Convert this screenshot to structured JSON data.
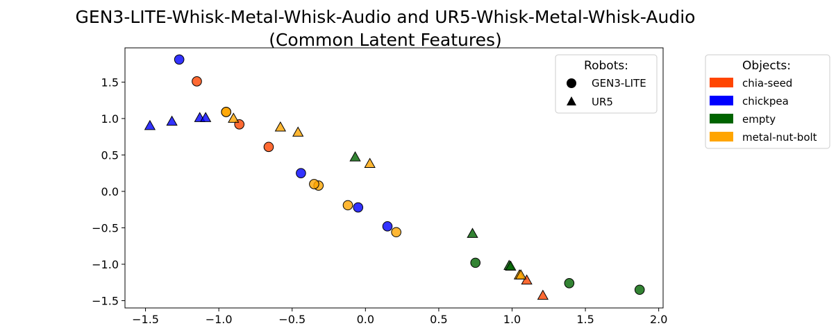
{
  "chart_data": {
    "type": "scatter",
    "title": "GEN3-LITE-Whisk-Metal-Whisk-Audio and UR5-Whisk-Metal-Whisk-Audio\n(Common Latent Features)",
    "xlabel": "",
    "ylabel": "",
    "xlim": [
      -1.64,
      2.03
    ],
    "ylim": [
      -1.6,
      1.97
    ],
    "xticks": [
      -1.5,
      -1.0,
      -0.5,
      0.0,
      0.5,
      1.0,
      1.5,
      2.0
    ],
    "yticks": [
      -1.5,
      -1.0,
      -0.5,
      0.0,
      0.5,
      1.0,
      1.5
    ],
    "grid": false,
    "legends": {
      "robots": {
        "title": "Robots:",
        "placement": "top-right inside",
        "items": [
          {
            "label": "GEN3-LITE",
            "marker": "circle"
          },
          {
            "label": "UR5",
            "marker": "triangle"
          }
        ]
      },
      "objects": {
        "title": "Objects:",
        "placement": "outside right",
        "items": [
          {
            "label": "chia-seed",
            "color": "#ff4500"
          },
          {
            "label": "chickpea",
            "color": "#0000ff"
          },
          {
            "label": "empty",
            "color": "#006400"
          },
          {
            "label": "metal-nut-bolt",
            "color": "#ffa500"
          }
        ]
      }
    },
    "series": [
      {
        "robot": "GEN3-LITE",
        "object": "chia-seed",
        "points": [
          [
            -1.15,
            1.51
          ],
          [
            -0.86,
            0.92
          ],
          [
            -0.66,
            0.61
          ]
        ]
      },
      {
        "robot": "GEN3-LITE",
        "object": "chickpea",
        "points": [
          [
            -1.27,
            1.81
          ],
          [
            -0.44,
            0.25
          ],
          [
            -0.05,
            -0.22
          ],
          [
            0.15,
            -0.48
          ]
        ]
      },
      {
        "robot": "GEN3-LITE",
        "object": "empty",
        "points": [
          [
            0.75,
            -0.98
          ],
          [
            1.39,
            -1.26
          ],
          [
            1.87,
            -1.35
          ]
        ]
      },
      {
        "robot": "GEN3-LITE",
        "object": "metal-nut-bolt",
        "points": [
          [
            -0.95,
            1.09
          ],
          [
            -0.95,
            1.09
          ],
          [
            -0.32,
            0.08
          ],
          [
            -0.35,
            0.1
          ],
          [
            -0.12,
            -0.19
          ],
          [
            0.21,
            -0.56
          ]
        ]
      },
      {
        "robot": "UR5",
        "object": "chia-seed",
        "points": [
          [
            1.1,
            -1.22
          ],
          [
            1.21,
            -1.43
          ]
        ]
      },
      {
        "robot": "UR5",
        "object": "chickpea",
        "points": [
          [
            -1.47,
            0.9
          ],
          [
            -1.32,
            0.96
          ],
          [
            -1.13,
            1.01
          ],
          [
            -1.09,
            1.01
          ]
        ]
      },
      {
        "robot": "UR5",
        "object": "empty",
        "points": [
          [
            -0.07,
            0.47
          ],
          [
            0.73,
            -0.58
          ],
          [
            0.98,
            -1.02
          ],
          [
            0.99,
            -1.03
          ]
        ]
      },
      {
        "robot": "UR5",
        "object": "metal-nut-bolt",
        "points": [
          [
            -0.9,
            1.0
          ],
          [
            -0.58,
            0.88
          ],
          [
            -0.46,
            0.81
          ],
          [
            0.03,
            0.38
          ],
          [
            1.05,
            -1.15
          ],
          [
            1.06,
            -1.15
          ]
        ]
      }
    ]
  }
}
